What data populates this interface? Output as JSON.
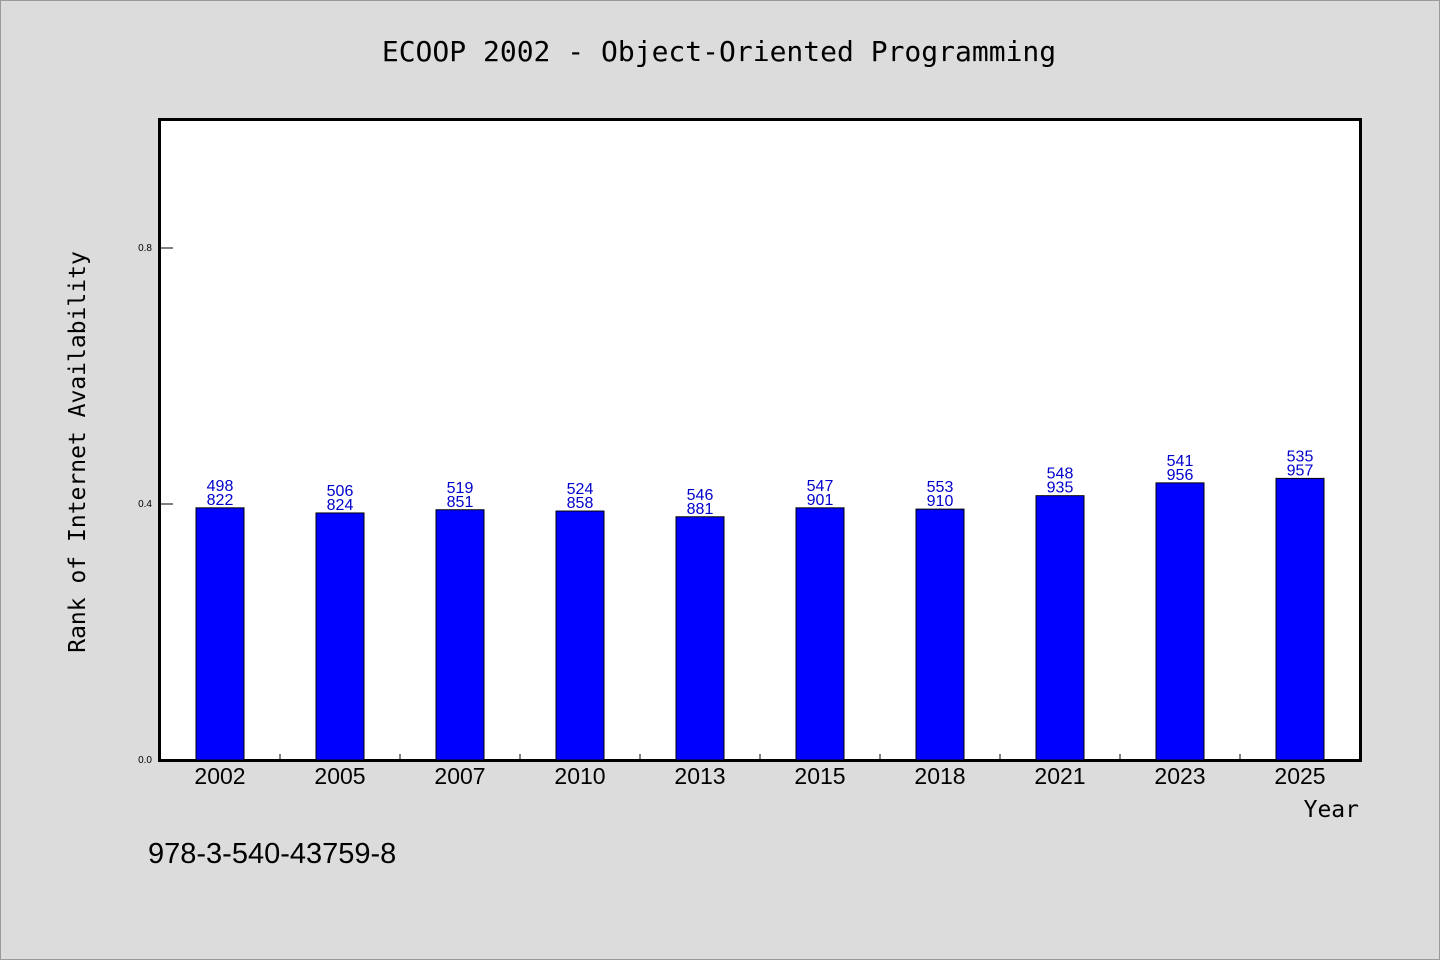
{
  "chart_data": {
    "type": "bar",
    "title": "ECOOP 2002 - Object-Oriented Programming",
    "xlabel": "Year",
    "ylabel": "Rank of Internet Availability",
    "categories": [
      "2002",
      "2005",
      "2007",
      "2010",
      "2013",
      "2015",
      "2018",
      "2021",
      "2023",
      "2025"
    ],
    "values": [
      0.394,
      0.386,
      0.391,
      0.389,
      0.38,
      0.394,
      0.392,
      0.413,
      0.433,
      0.44
    ],
    "labels_top": [
      "498",
      "506",
      "519",
      "524",
      "546",
      "547",
      "553",
      "548",
      "541",
      "535"
    ],
    "labels_bottom": [
      "822",
      "824",
      "851",
      "858",
      "881",
      "901",
      "910",
      "935",
      "956",
      "957"
    ],
    "yticks": [
      0.0,
      0.4,
      0.8
    ],
    "ytick_labels": [
      "0.0",
      "0.4",
      "0.8"
    ],
    "ylim": [
      0,
      1.0
    ],
    "grid": false,
    "bar_color": "#0000ff",
    "label_color": "#0000cc"
  },
  "footer": {
    "isbn": "978-3-540-43759-8"
  }
}
